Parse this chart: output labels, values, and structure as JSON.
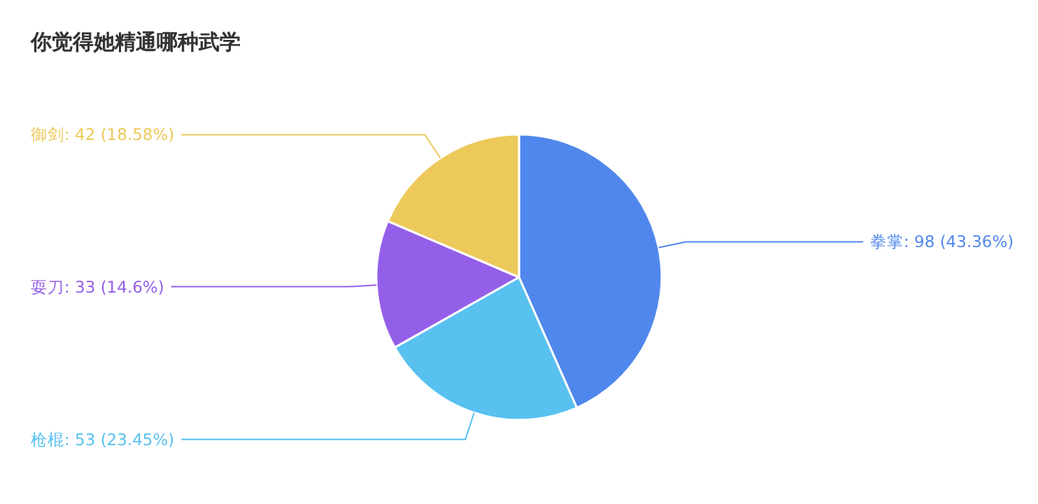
{
  "chart_data": {
    "type": "pie",
    "title": "你觉得她精通哪种武学",
    "categories": [
      "拳掌",
      "枪棍",
      "耍刀",
      "御剑"
    ],
    "values": [
      98,
      53,
      33,
      42
    ],
    "colors": [
      "#5087ec",
      "#58c1f0",
      "#945fe8",
      "#edc95b"
    ],
    "value_labels": [
      "98 (43.36%)",
      "53 (23.45%)",
      "33 (14.6%)",
      "42 (18.58%)"
    ]
  }
}
